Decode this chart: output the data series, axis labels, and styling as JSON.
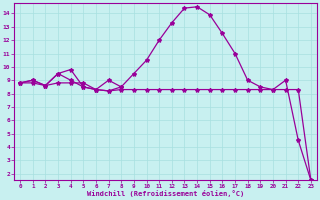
{
  "xlabel": "Windchill (Refroidissement éolien,°C)",
  "background_color": "#c8f0f0",
  "line_color": "#990099",
  "grid_color": "#a8e0e0",
  "xlim": [
    -0.5,
    23.5
  ],
  "ylim": [
    1.5,
    14.8
  ],
  "yticks": [
    2,
    3,
    4,
    5,
    6,
    7,
    8,
    9,
    10,
    11,
    12,
    13,
    14
  ],
  "xticks": [
    0,
    1,
    2,
    3,
    4,
    5,
    6,
    7,
    8,
    9,
    10,
    11,
    12,
    13,
    14,
    15,
    16,
    17,
    18,
    19,
    20,
    21,
    22,
    23
  ],
  "series1_x": [
    0,
    1,
    2,
    3,
    4,
    5,
    6,
    7,
    8,
    9,
    10,
    11,
    12,
    13,
    14,
    15,
    16,
    17,
    18,
    19,
    20,
    21,
    22,
    23
  ],
  "series1_y": [
    8.8,
    9.0,
    8.6,
    9.5,
    9.8,
    8.5,
    8.3,
    8.2,
    8.5,
    9.5,
    10.5,
    12.0,
    13.3,
    14.4,
    14.5,
    13.9,
    12.5,
    11.0,
    9.0,
    8.5,
    8.3,
    9.0,
    4.5,
    1.5
  ],
  "series2_x": [
    0,
    1,
    2,
    3,
    4,
    5,
    6,
    7,
    8,
    9,
    10,
    11,
    12,
    13,
    14,
    15,
    16,
    17,
    18,
    19,
    20,
    21,
    22,
    23
  ],
  "series2_y": [
    8.8,
    8.8,
    8.6,
    8.8,
    8.8,
    8.8,
    8.3,
    8.2,
    8.3,
    8.3,
    8.3,
    8.3,
    8.3,
    8.3,
    8.3,
    8.3,
    8.3,
    8.3,
    8.3,
    8.3,
    8.3,
    8.3,
    8.3,
    1.5
  ],
  "series3_x": [
    0,
    1,
    2,
    3,
    4,
    5,
    6,
    7,
    8
  ],
  "series3_y": [
    8.8,
    9.0,
    8.6,
    9.5,
    9.0,
    8.5,
    8.3,
    9.0,
    8.5
  ]
}
